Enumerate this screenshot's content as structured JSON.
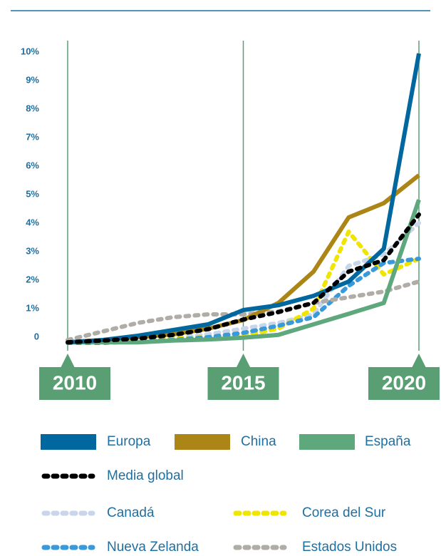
{
  "chart_data": {
    "type": "line",
    "x": [
      2010,
      2011,
      2012,
      2013,
      2014,
      2015,
      2016,
      2017,
      2018,
      2019,
      2020
    ],
    "xlim": [
      2010,
      2020
    ],
    "xticks": [
      2010,
      2015,
      2020
    ],
    "ylim": [
      -0.4,
      10.2
    ],
    "yticks": [
      0,
      {
        "value": 1,
        "label": "1%"
      },
      {
        "value": 2,
        "label": "2%"
      },
      {
        "value": 3,
        "label": "3%"
      },
      {
        "value": 4,
        "label": "4%"
      },
      {
        "value": 5,
        "label": "5%"
      },
      {
        "value": 6,
        "label": "6%"
      },
      {
        "value": 7,
        "label": "7%"
      },
      {
        "value": 8,
        "label": "8%"
      },
      {
        "value": 9,
        "label": "9%"
      },
      {
        "value": 10,
        "label": "10%"
      }
    ],
    "series": [
      {
        "name": "Europa",
        "color": "#00679f",
        "style": "solid",
        "values": [
          -0.18,
          -0.1,
          0.05,
          0.25,
          0.45,
          0.95,
          1.12,
          1.45,
          1.95,
          3.1,
          9.95
        ]
      },
      {
        "name": "China",
        "color": "#ab8515",
        "style": "solid",
        "values": [
          -0.18,
          -0.1,
          0,
          0.1,
          0.3,
          0.6,
          1.2,
          2.3,
          4.2,
          4.7,
          5.68
        ]
      },
      {
        "name": "España",
        "color": "#5fa87e",
        "style": "solid",
        "values": [
          -0.18,
          -0.18,
          -0.18,
          -0.12,
          -0.08,
          -0.02,
          0.08,
          0.45,
          0.82,
          1.2,
          4.82
        ]
      },
      {
        "name": "Media global",
        "color": "#000000",
        "style": "dashed",
        "values": [
          -0.18,
          -0.12,
          -0.05,
          0.08,
          0.28,
          0.62,
          0.88,
          1.2,
          2.3,
          2.7,
          4.3
        ]
      },
      {
        "name": "Canadá",
        "color": "#c9d6ea",
        "style": "dashed",
        "values": [
          -0.2,
          -0.15,
          -0.1,
          -0.05,
          0.1,
          0.3,
          0.5,
          0.8,
          2.5,
          2.9,
          4.0
        ]
      },
      {
        "name": "Corea del Sur",
        "color": "#f0e500",
        "style": "dashed",
        "values": [
          -0.2,
          -0.2,
          -0.15,
          -0.05,
          0,
          0.05,
          0.3,
          1.0,
          3.7,
          2.2,
          2.75
        ]
      },
      {
        "name": "Nueva Zelanda",
        "color": "#3a9ad9",
        "style": "dashed",
        "values": [
          -0.2,
          -0.2,
          -0.15,
          -0.1,
          0,
          0.15,
          0.4,
          0.7,
          1.8,
          2.6,
          2.75
        ]
      },
      {
        "name": "Estados Unidos",
        "color": "#b0ada6",
        "style": "dashed",
        "values": [
          -0.1,
          0.2,
          0.5,
          0.7,
          0.8,
          0.8,
          0.9,
          1.2,
          1.4,
          1.6,
          1.95
        ]
      }
    ]
  }
}
